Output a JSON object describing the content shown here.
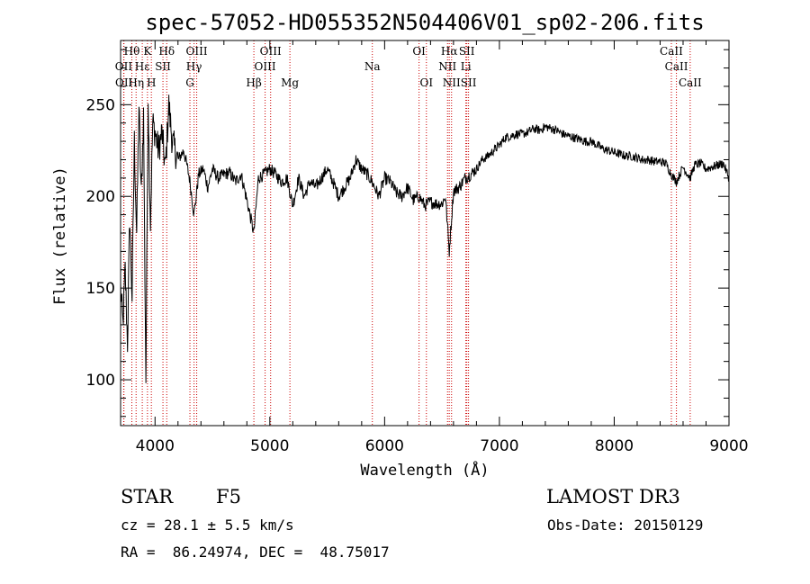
{
  "chart_data": {
    "type": "line",
    "title": "spec-57052-HD055352N504406V01_sp02-206.fits",
    "xlabel": "Wavelength (Å)",
    "ylabel": "Flux (relative)",
    "xlim": [
      3700,
      9000
    ],
    "ylim": [
      75,
      285
    ],
    "x_ticks": [
      4000,
      5000,
      6000,
      7000,
      8000,
      9000
    ],
    "y_ticks": [
      100,
      150,
      200,
      250
    ],
    "grid": false,
    "line_color": "#000000",
    "marker_color": "#cc0000",
    "series": [
      {
        "x": [
          3700,
          3720,
          3740,
          3760,
          3780,
          3800,
          3820,
          3840,
          3860,
          3880,
          3900,
          3920,
          3940,
          3960,
          3980,
          4000,
          4030,
          4060,
          4090,
          4120,
          4150,
          4200,
          4250,
          4300,
          4340,
          4380,
          4420,
          4460,
          4500,
          4550,
          4600,
          4650,
          4700,
          4750,
          4800,
          4861,
          4900,
          4950,
          5000,
          5050,
          5100,
          5150,
          5200,
          5250,
          5300,
          5350,
          5400,
          5450,
          5500,
          5550,
          5600,
          5650,
          5700,
          5750,
          5800,
          5850,
          5890,
          5950,
          6000,
          6050,
          6100,
          6150,
          6200,
          6250,
          6300,
          6350,
          6400,
          6450,
          6500,
          6530,
          6563,
          6600,
          6650,
          6700,
          6750,
          6800,
          6850,
          6900,
          6950,
          7000,
          7050,
          7100,
          7150,
          7200,
          7250,
          7300,
          7350,
          7400,
          7450,
          7500,
          7550,
          7600,
          7650,
          7700,
          7750,
          7800,
          7850,
          7900,
          7950,
          8000,
          8050,
          8100,
          8150,
          8200,
          8250,
          8300,
          8350,
          8400,
          8450,
          8498,
          8542,
          8600,
          8662,
          8700,
          8750,
          8800,
          8850,
          8900,
          8950,
          9000
        ],
        "y": [
          150,
          130,
          160,
          120,
          190,
          145,
          230,
          180,
          250,
          200,
          245,
          100,
          255,
          185,
          240,
          235,
          225,
          235,
          215,
          250,
          230,
          220,
          225,
          210,
          190,
          212,
          215,
          205,
          215,
          210,
          212,
          213,
          208,
          212,
          198,
          180,
          210,
          212,
          215,
          212,
          208,
          210,
          195,
          210,
          200,
          208,
          205,
          210,
          215,
          208,
          200,
          205,
          210,
          220,
          215,
          212,
          208,
          200,
          210,
          208,
          202,
          200,
          205,
          198,
          200,
          195,
          197,
          196,
          196,
          200,
          170,
          203,
          205,
          210,
          212,
          215,
          220,
          222,
          225,
          228,
          232,
          233,
          234,
          234,
          235,
          237,
          236,
          238,
          237,
          236,
          234,
          233,
          232,
          231,
          230,
          230,
          228,
          226,
          225,
          224,
          223,
          222,
          222,
          221,
          220,
          220,
          219,
          219,
          218,
          212,
          208,
          216,
          210,
          217,
          218,
          215,
          216,
          217,
          218,
          210
        ]
      }
    ],
    "spectral_lines": [
      {
        "label": "Hθ",
        "x": 3798,
        "row": 0
      },
      {
        "label": "K",
        "x": 3934,
        "row": 0
      },
      {
        "label": "Hδ",
        "x": 4102,
        "row": 0
      },
      {
        "label": "OII",
        "x": 3727,
        "row": 1
      },
      {
        "label": "Hε",
        "x": 3889,
        "row": 1
      },
      {
        "label": "SII",
        "x": 4069,
        "row": 1
      },
      {
        "label": "OII",
        "x": 3729,
        "row": 2
      },
      {
        "label": "Hη",
        "x": 3835,
        "row": 2
      },
      {
        "label": "H",
        "x": 3968,
        "row": 2
      },
      {
        "label": "OIII",
        "x": 4363,
        "row": 0
      },
      {
        "label": "Hγ",
        "x": 4340,
        "row": 1
      },
      {
        "label": "G",
        "x": 4304,
        "row": 2
      },
      {
        "label": "Hβ",
        "x": 4861,
        "row": 2
      },
      {
        "label": "OIII",
        "x": 5007,
        "row": 0
      },
      {
        "label": "OIII",
        "x": 4959,
        "row": 1
      },
      {
        "label": "Mg",
        "x": 5175,
        "row": 2
      },
      {
        "label": "Na",
        "x": 5893,
        "row": 1
      },
      {
        "label": "OI",
        "x": 6300,
        "row": 0
      },
      {
        "label": "OI",
        "x": 6364,
        "row": 2
      },
      {
        "label": "Hα",
        "x": 6563,
        "row": 0
      },
      {
        "label": "SII",
        "x": 6716,
        "row": 0
      },
      {
        "label": "NII",
        "x": 6548,
        "row": 1
      },
      {
        "label": "Li",
        "x": 6708,
        "row": 1
      },
      {
        "label": "NII",
        "x": 6583,
        "row": 2
      },
      {
        "label": "SII",
        "x": 6731,
        "row": 2
      },
      {
        "label": "CaII",
        "x": 8498,
        "row": 0
      },
      {
        "label": "CaII",
        "x": 8542,
        "row": 1
      },
      {
        "label": "CaII",
        "x": 8662,
        "row": 2
      }
    ]
  },
  "info": {
    "object_type": "STAR",
    "subclass": "F5",
    "survey": "LAMOST DR3",
    "redshift": "cz = 28.1 ± 5.5 km/s",
    "obs_date": "Obs-Date: 20150129",
    "coords": "RA =  86.24974, DEC =  48.75017"
  }
}
